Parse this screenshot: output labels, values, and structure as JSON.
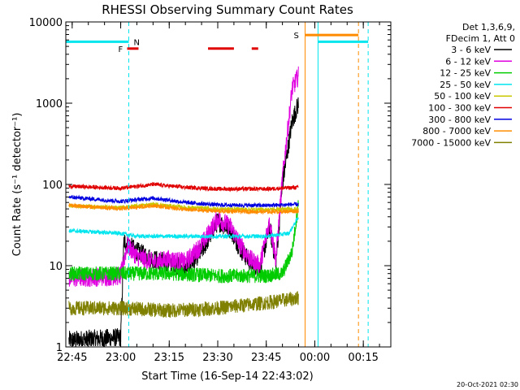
{
  "chart_data": {
    "type": "line",
    "title": "RHESSI Observing Summary Count Rates",
    "xlabel": "Start Time (16-Sep-14 22:43:02)",
    "ylabel": "Count Rate (s⁻¹ detector⁻¹)",
    "y_scale": "log",
    "ylim": [
      1,
      10000
    ],
    "x_time_range": [
      "22:43:02",
      "00:23:30"
    ],
    "x_ticks": [
      "22:45",
      "23:00",
      "23:15",
      "23:30",
      "23:45",
      "00:00",
      "00:15"
    ],
    "y_ticks": [
      "1",
      "10",
      "100",
      "1000",
      "10000"
    ],
    "legend_header": [
      "Det 1,3,6,9,",
      "FDecim 1, Att 0"
    ],
    "legend_position": "right",
    "footer": "20-Oct-2021 02:30",
    "flag_labels": {
      "night": "N",
      "flare": "F",
      "saa": "S"
    },
    "flags": {
      "night": [
        [
          "22:43:02",
          "23:02:30"
        ],
        [
          "00:01:00",
          "00:16:30"
        ]
      ],
      "flare": [
        [
          "23:02:00",
          "23:05:30"
        ],
        [
          "23:27:00",
          "23:35:00"
        ],
        [
          "23:40:30",
          "23:42:30"
        ]
      ],
      "saa": [
        [
          "23:57:00",
          "00:13:30"
        ]
      ]
    },
    "data_gaps": [
      [
        "23:56:00",
        "00:16:30"
      ]
    ],
    "series": [
      {
        "name": "3 - 6 keV",
        "color": "#000000",
        "points": [
          [
            "22:44",
            "1.2"
          ],
          [
            "23:00",
            "1.3"
          ],
          [
            "23:01",
            "20"
          ],
          [
            "23:05",
            "15"
          ],
          [
            "23:10",
            "12"
          ],
          [
            "23:15",
            "11"
          ],
          [
            "23:20",
            "9"
          ],
          [
            "23:25",
            "15"
          ],
          [
            "23:30",
            "35"
          ],
          [
            "23:34",
            "28"
          ],
          [
            "23:37",
            "16"
          ],
          [
            "23:40",
            "11"
          ],
          [
            "23:43",
            "9"
          ],
          [
            "23:46",
            "30"
          ],
          [
            "23:48",
            "11"
          ],
          [
            "23:50",
            "100"
          ],
          [
            "23:53",
            "600"
          ],
          [
            "23:55",
            "1000"
          ]
        ]
      },
      {
        "name": "6 - 12 keV",
        "color": "#e000e0",
        "points": [
          [
            "22:44",
            "7"
          ],
          [
            "23:00",
            "7.5"
          ],
          [
            "23:02",
            "18"
          ],
          [
            "23:05",
            "13"
          ],
          [
            "23:10",
            "11"
          ],
          [
            "23:15",
            "12"
          ],
          [
            "23:20",
            "11"
          ],
          [
            "23:25",
            "18"
          ],
          [
            "23:30",
            "38"
          ],
          [
            "23:34",
            "30"
          ],
          [
            "23:37",
            "18"
          ],
          [
            "23:40",
            "12"
          ],
          [
            "23:43",
            "10"
          ],
          [
            "23:46",
            "35"
          ],
          [
            "23:48",
            "12"
          ],
          [
            "23:50",
            "120"
          ],
          [
            "23:53",
            "1500"
          ],
          [
            "23:55",
            "2200"
          ]
        ]
      },
      {
        "name": "12 - 25 keV",
        "color": "#00cc00",
        "points": [
          [
            "22:44",
            "8"
          ],
          [
            "23:00",
            "8"
          ],
          [
            "23:15",
            "8"
          ],
          [
            "23:30",
            "7.5"
          ],
          [
            "23:45",
            "7.5"
          ],
          [
            "23:50",
            "8"
          ],
          [
            "23:53",
            "15"
          ],
          [
            "23:55",
            "60"
          ]
        ]
      },
      {
        "name": "25 - 50 keV",
        "color": "#00e5ee",
        "points": [
          [
            "22:44",
            "27"
          ],
          [
            "23:00",
            "25"
          ],
          [
            "23:05",
            "23"
          ],
          [
            "23:15",
            "23"
          ],
          [
            "23:30",
            "23"
          ],
          [
            "23:45",
            "23"
          ],
          [
            "23:52",
            "25"
          ],
          [
            "23:55",
            "40"
          ]
        ]
      },
      {
        "name": "50 - 100 keV",
        "color": "#c8c800",
        "points": [
          [
            "22:44",
            "55"
          ],
          [
            "23:00",
            "52"
          ],
          [
            "23:10",
            "57"
          ],
          [
            "23:20",
            "52"
          ],
          [
            "23:30",
            "50"
          ],
          [
            "23:45",
            "49"
          ],
          [
            "23:55",
            "50"
          ]
        ]
      },
      {
        "name": "100 - 300 keV",
        "color": "#e00000",
        "points": [
          [
            "22:44",
            "95"
          ],
          [
            "23:00",
            "90"
          ],
          [
            "23:10",
            "100"
          ],
          [
            "23:20",
            "92"
          ],
          [
            "23:30",
            "88"
          ],
          [
            "23:45",
            "88"
          ],
          [
            "23:55",
            "92"
          ]
        ]
      },
      {
        "name": "300 - 800 keV",
        "color": "#0000e0",
        "points": [
          [
            "22:44",
            "70"
          ],
          [
            "23:00",
            "62"
          ],
          [
            "23:10",
            "68"
          ],
          [
            "23:20",
            "60"
          ],
          [
            "23:30",
            "56"
          ],
          [
            "23:45",
            "55"
          ],
          [
            "23:55",
            "57"
          ]
        ]
      },
      {
        "name": "800 - 7000 keV",
        "color": "#ff8c00",
        "points": [
          [
            "22:44",
            "55"
          ],
          [
            "23:00",
            "50"
          ],
          [
            "23:10",
            "55"
          ],
          [
            "23:20",
            "49"
          ],
          [
            "23:30",
            "47"
          ],
          [
            "23:45",
            "46"
          ],
          [
            "23:55",
            "47"
          ]
        ]
      },
      {
        "name": "7000 - 15000 keV",
        "color": "#808000",
        "points": [
          [
            "22:44",
            "3"
          ],
          [
            "23:00",
            "3"
          ],
          [
            "23:15",
            "2.8"
          ],
          [
            "23:30",
            "3"
          ],
          [
            "23:45",
            "3.5"
          ],
          [
            "23:55",
            "4"
          ]
        ]
      }
    ]
  }
}
